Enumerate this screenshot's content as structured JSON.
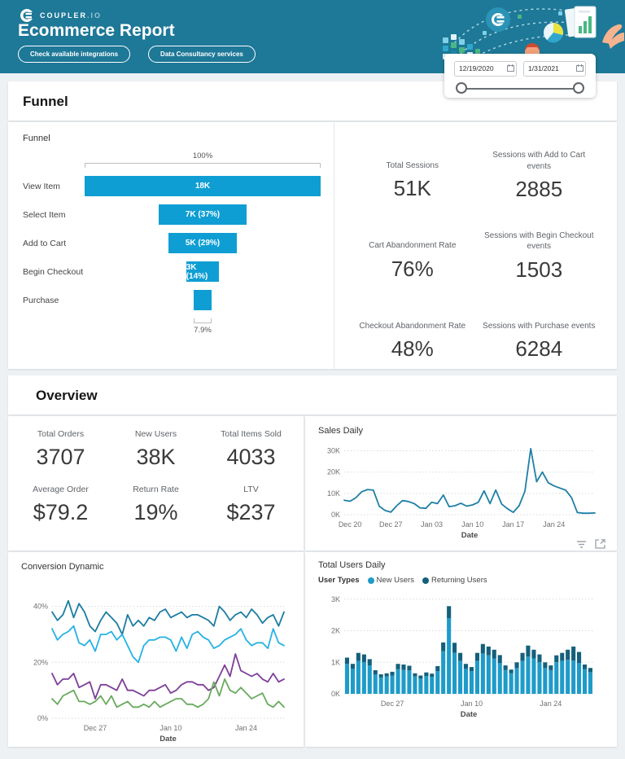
{
  "header": {
    "logo_text": "COUPLER",
    "logo_suffix": ".IO",
    "title": "Ecommerce Report",
    "buttons": [
      {
        "label": "Check available integrations"
      },
      {
        "label": "Data Consultancy services"
      }
    ]
  },
  "date_filter": {
    "start": "12/19/2020",
    "end": "1/31/2021"
  },
  "funnel_section": {
    "heading": "Funnel",
    "chart_title": "Funnel",
    "stats": [
      {
        "label": "Total Sessions",
        "value": "51K"
      },
      {
        "label": "Sessions with Add to Cart events",
        "value": "2885"
      },
      {
        "label": "Cart Abandonment Rate",
        "value": "76%"
      },
      {
        "label": "Sessions with Begin Checkout events",
        "value": "1503"
      },
      {
        "label": "Checkout Abandonment Rate",
        "value": "48%"
      },
      {
        "label": "Sessions with Purchase events",
        "value": "6284"
      }
    ]
  },
  "overview_section": {
    "heading": "Overview",
    "scorecards": [
      {
        "label": "Total Orders",
        "value": "3707"
      },
      {
        "label": "New Users",
        "value": "38K"
      },
      {
        "label": "Total Items Sold",
        "value": "4033"
      },
      {
        "label": "Average Order",
        "value": "$79.2"
      },
      {
        "label": "Return Rate",
        "value": "19%"
      },
      {
        "label": "LTV",
        "value": "$237"
      }
    ]
  },
  "colors": {
    "header_teal": "#1e7897",
    "funnel_bar": "#0f9ed3",
    "sales_line": "#1d7fa7",
    "conv_dark_blue": "#1c7ca3",
    "conv_cyan": "#25b2e5",
    "conv_purple": "#7d3f98",
    "conv_green": "#69aa5e",
    "bar_new_users": "#1f9bc9",
    "bar_returning_users": "#14607c",
    "page_bg": "#eef1f4"
  },
  "chart_data": [
    {
      "id": "funnel",
      "type": "funnel",
      "title": "Funnel",
      "color": "#0f9ed3",
      "top_label": "100%",
      "bottom_label": "7.9%",
      "steps": [
        {
          "label": "View Item",
          "value_label": "18K",
          "pct": 100
        },
        {
          "label": "Select Item",
          "value_label": "7K (37%)",
          "pct": 37
        },
        {
          "label": "Add to Cart",
          "value_label": "5K (29%)",
          "pct": 29
        },
        {
          "label": "Begin Checkout",
          "value_label": "3K (14%)",
          "pct": 14
        },
        {
          "label": "Purchase",
          "value_label": "",
          "pct": 7.9
        }
      ]
    },
    {
      "id": "sales_daily",
      "type": "line",
      "title": "Sales Daily",
      "xlabel": "Date",
      "y_max": 32.5,
      "grid": "dotted",
      "legend": "none",
      "y_ticks": [
        {
          "value": 0,
          "label": "0K"
        },
        {
          "value": 10,
          "label": "10K"
        },
        {
          "value": 20,
          "label": "20K"
        },
        {
          "value": 30,
          "label": "30K"
        }
      ],
      "x_ticks": [
        {
          "label": "Dec 20",
          "pos": 0.023
        },
        {
          "label": "Dec 27",
          "pos": 0.186
        },
        {
          "label": "Jan 03",
          "pos": 0.349
        },
        {
          "label": "Jan 10",
          "pos": 0.512
        },
        {
          "label": "Jan 17",
          "pos": 0.674
        },
        {
          "label": "Jan 24",
          "pos": 0.837
        }
      ],
      "x_range": [
        "Dec 19 2020",
        "Jan 31 2021"
      ],
      "series": [
        {
          "name": "Sales",
          "color": "#1d7fa7",
          "values": [
            6.8,
            6.3,
            8.0,
            10.8,
            11.8,
            11.5,
            4.0,
            2.0,
            1.2,
            4.2,
            6.6,
            6.2,
            5.2,
            3.2,
            3.0,
            5.8,
            5.2,
            9.2,
            3.8,
            4.2,
            5.4,
            4.0,
            4.6,
            5.8,
            11.2,
            5.2,
            11.6,
            5.0,
            2.8,
            1.1,
            4.2,
            11.0,
            31.0,
            15.5,
            20.0,
            15.0,
            13.5,
            12.5,
            11.5,
            8.0,
            1.0,
            0.7,
            0.7,
            0.8
          ]
        }
      ]
    },
    {
      "id": "conversion_dynamic",
      "type": "line",
      "title": "Conversion Dynamic",
      "xlabel": "Date",
      "y_max": 46,
      "grid": "dotted",
      "legend": "none",
      "y_ticks": [
        {
          "value": 0,
          "label": "0%"
        },
        {
          "value": 20,
          "label": "20%"
        },
        {
          "value": 40,
          "label": "40%"
        }
      ],
      "x_ticks": [
        {
          "label": "Dec 27",
          "pos": 0.186
        },
        {
          "label": "Jan 10",
          "pos": 0.512
        },
        {
          "label": "Jan 24",
          "pos": 0.837
        }
      ],
      "x_range": [
        "Dec 19 2020",
        "Jan 31 2021"
      ],
      "series": [
        {
          "name": "series-dark-blue",
          "color": "#1c7ca3",
          "values": [
            38,
            35,
            37,
            42,
            36,
            41,
            38,
            33,
            31,
            35,
            38,
            36,
            34,
            30,
            37,
            33,
            35,
            33,
            36,
            35,
            38,
            39,
            36,
            37,
            38,
            36,
            37,
            37,
            36,
            35,
            33,
            40,
            38,
            35,
            37,
            38,
            36,
            39,
            37,
            34,
            36,
            37,
            33,
            38
          ]
        },
        {
          "name": "series-cyan",
          "color": "#25b2e5",
          "values": [
            32,
            28,
            30,
            31,
            33,
            27,
            26,
            28,
            24,
            30,
            30,
            31,
            28,
            30,
            26,
            22,
            20,
            26,
            28,
            28,
            29,
            29,
            28,
            24,
            29,
            25,
            30,
            31,
            29,
            28,
            25,
            26,
            28,
            29,
            30,
            32,
            28,
            26,
            27,
            27,
            25,
            32,
            27,
            26
          ]
        },
        {
          "name": "series-purple",
          "color": "#7d3f98",
          "values": [
            16,
            12,
            14,
            14,
            16,
            11,
            12,
            13,
            7,
            12,
            12,
            11,
            10,
            14,
            10,
            10,
            9,
            8,
            10,
            10,
            11,
            12,
            9,
            10,
            12,
            13,
            13,
            12,
            12,
            10,
            11,
            15,
            19,
            15,
            23,
            17,
            16,
            15,
            16,
            14,
            13,
            16,
            13,
            14
          ]
        },
        {
          "name": "series-green",
          "color": "#69aa5e",
          "values": [
            7,
            5,
            8,
            9,
            10,
            6,
            6,
            5,
            6,
            8,
            5,
            8,
            4,
            5,
            6,
            4,
            4,
            5,
            4,
            6,
            4,
            5,
            6,
            7,
            7,
            5,
            5,
            4,
            5,
            7,
            13,
            8,
            14,
            10,
            9,
            11,
            9,
            7,
            8,
            9,
            5,
            4,
            6,
            4
          ]
        }
      ]
    },
    {
      "id": "total_users_daily",
      "type": "stacked_bar",
      "title": "Total Users Daily",
      "legend_title": "User Types",
      "xlabel": "Date",
      "y_max": 3.15,
      "grid": "dotted",
      "legend": "top",
      "y_ticks": [
        {
          "value": 0,
          "label": "0K"
        },
        {
          "value": 1,
          "label": "1K"
        },
        {
          "value": 2,
          "label": "2K"
        },
        {
          "value": 3,
          "label": "3K"
        }
      ],
      "x_ticks": [
        {
          "label": "Dec 27",
          "pos": 0.186
        },
        {
          "label": "Jan 10",
          "pos": 0.512
        },
        {
          "label": "Jan 24",
          "pos": 0.837
        }
      ],
      "x_range": [
        "Dec 19 2020",
        "Jan 31 2021"
      ],
      "series": [
        {
          "name": "New Users",
          "color": "#1f9bc9",
          "values": [
            0.95,
            0.8,
            1.05,
            1.0,
            0.9,
            0.62,
            0.52,
            0.55,
            0.58,
            0.78,
            0.76,
            0.74,
            0.55,
            0.48,
            0.56,
            0.54,
            0.72,
            1.35,
            2.4,
            1.3,
            1.05,
            0.8,
            0.72,
            1.05,
            1.28,
            1.22,
            1.12,
            0.98,
            0.75,
            0.65,
            0.82,
            1.05,
            1.18,
            1.12,
            1.0,
            0.82,
            0.75,
            1.0,
            1.05,
            1.08,
            1.05,
            0.98,
            0.78,
            0.68
          ]
        },
        {
          "name": "Returning Users",
          "color": "#14607c",
          "values": [
            0.2,
            0.15,
            0.25,
            0.25,
            0.2,
            0.13,
            0.1,
            0.1,
            0.12,
            0.17,
            0.17,
            0.15,
            0.1,
            0.1,
            0.12,
            0.1,
            0.16,
            0.28,
            0.38,
            0.32,
            0.25,
            0.15,
            0.13,
            0.25,
            0.3,
            0.28,
            0.28,
            0.25,
            0.15,
            0.12,
            0.18,
            0.25,
            0.35,
            0.28,
            0.25,
            0.18,
            0.15,
            0.22,
            0.25,
            0.32,
            0.45,
            0.35,
            0.15,
            0.14
          ]
        }
      ]
    }
  ]
}
